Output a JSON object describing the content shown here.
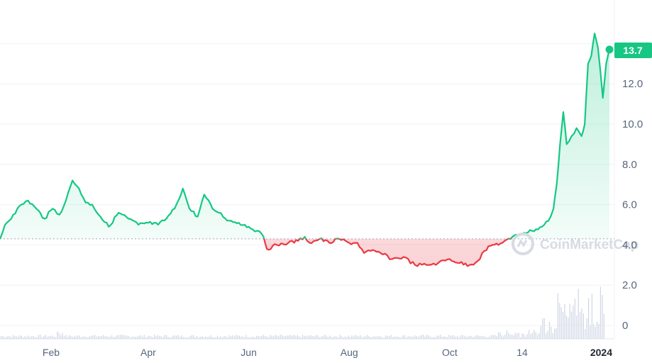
{
  "chart_data": {
    "type": "line",
    "x_start": "2023-01-01",
    "x_end": "2024-01-09",
    "ylim": [
      -0.5,
      16
    ],
    "yticks": [
      0,
      2.0,
      4.0,
      6.0,
      8.0,
      10.0,
      12.0
    ],
    "ytick_labels": [
      "0",
      "2.0",
      "4.0",
      "6.0",
      "8.0",
      "10.0",
      "12.0"
    ],
    "xtick_labels": [
      {
        "date": "2023-02-01",
        "label": "Feb",
        "bold": false
      },
      {
        "date": "2023-04-01",
        "label": "Apr",
        "bold": false
      },
      {
        "date": "2023-06-01",
        "label": "Jun",
        "bold": false
      },
      {
        "date": "2023-08-01",
        "label": "Aug",
        "bold": false
      },
      {
        "date": "2023-10-01",
        "label": "Oct",
        "bold": false
      },
      {
        "date": "2023-11-14",
        "label": "14",
        "bold": false
      },
      {
        "date": "2024-01-01",
        "label": "2024",
        "bold": true
      }
    ],
    "baseline": 4.3,
    "current_price_label": "13.7",
    "current_price": 13.7,
    "grid": true,
    "legend": "none",
    "colors": {
      "up": "#16c784",
      "down": "#ea3943",
      "baseline": "#a1a7bb",
      "volume": "#cfd6e4"
    },
    "series": [
      {
        "type": "line",
        "points": [
          [
            "2023-01-01",
            4.3
          ],
          [
            "2023-01-04",
            5.0
          ],
          [
            "2023-01-09",
            5.5
          ],
          [
            "2023-01-14",
            6.0
          ],
          [
            "2023-01-18",
            6.2
          ],
          [
            "2023-01-23",
            5.8
          ],
          [
            "2023-01-28",
            5.3
          ],
          [
            "2023-02-02",
            5.8
          ],
          [
            "2023-02-06",
            5.5
          ],
          [
            "2023-02-10",
            6.2
          ],
          [
            "2023-02-14",
            7.2
          ],
          [
            "2023-02-18",
            6.8
          ],
          [
            "2023-02-22",
            6.1
          ],
          [
            "2023-02-26",
            6.0
          ],
          [
            "2023-03-03",
            5.4
          ],
          [
            "2023-03-08",
            4.9
          ],
          [
            "2023-03-14",
            5.6
          ],
          [
            "2023-03-20",
            5.3
          ],
          [
            "2023-03-26",
            5.0
          ],
          [
            "2023-04-01",
            5.1
          ],
          [
            "2023-04-07",
            5.0
          ],
          [
            "2023-04-12",
            5.3
          ],
          [
            "2023-04-17",
            5.8
          ],
          [
            "2023-04-22",
            6.8
          ],
          [
            "2023-04-26",
            5.8
          ],
          [
            "2023-05-01",
            5.4
          ],
          [
            "2023-05-05",
            6.5
          ],
          [
            "2023-05-10",
            5.8
          ],
          [
            "2023-05-14",
            5.6
          ],
          [
            "2023-05-20",
            5.2
          ],
          [
            "2023-05-26",
            5.1
          ],
          [
            "2023-06-01",
            4.9
          ],
          [
            "2023-06-06",
            4.7
          ],
          [
            "2023-06-10",
            4.4
          ],
          [
            "2023-06-12",
            3.8
          ],
          [
            "2023-06-18",
            4.0
          ],
          [
            "2023-06-25",
            4.1
          ],
          [
            "2023-07-01",
            4.2
          ],
          [
            "2023-07-05",
            4.4
          ],
          [
            "2023-07-08",
            4.1
          ],
          [
            "2023-07-14",
            4.3
          ],
          [
            "2023-07-20",
            4.1
          ],
          [
            "2023-07-26",
            4.3
          ],
          [
            "2023-08-01",
            4.1
          ],
          [
            "2023-08-06",
            4.1
          ],
          [
            "2023-08-10",
            3.6
          ],
          [
            "2023-08-14",
            3.7
          ],
          [
            "2023-08-20",
            3.6
          ],
          [
            "2023-08-27",
            3.3
          ],
          [
            "2023-09-03",
            3.4
          ],
          [
            "2023-09-10",
            3.0
          ],
          [
            "2023-09-17",
            3.0
          ],
          [
            "2023-09-24",
            3.1
          ],
          [
            "2023-10-01",
            3.3
          ],
          [
            "2023-10-07",
            3.1
          ],
          [
            "2023-10-13",
            3.0
          ],
          [
            "2023-10-18",
            3.2
          ],
          [
            "2023-10-22",
            3.7
          ],
          [
            "2023-10-27",
            4.0
          ],
          [
            "2023-11-02",
            4.1
          ],
          [
            "2023-11-07",
            4.3
          ],
          [
            "2023-11-10",
            4.5
          ],
          [
            "2023-11-15",
            4.6
          ],
          [
            "2023-11-20",
            4.7
          ],
          [
            "2023-11-26",
            4.9
          ],
          [
            "2023-11-30",
            5.2
          ],
          [
            "2023-12-03",
            5.8
          ],
          [
            "2023-12-05",
            7.0
          ],
          [
            "2023-12-07",
            9.0
          ],
          [
            "2023-12-09",
            10.6
          ],
          [
            "2023-12-11",
            9.0
          ],
          [
            "2023-12-14",
            9.4
          ],
          [
            "2023-12-17",
            9.8
          ],
          [
            "2023-12-20",
            9.4
          ],
          [
            "2023-12-22",
            10.0
          ],
          [
            "2023-12-24",
            13.0
          ],
          [
            "2023-12-26",
            13.4
          ],
          [
            "2023-12-28",
            14.5
          ],
          [
            "2023-12-30",
            13.8
          ],
          [
            "2024-01-02",
            11.3
          ],
          [
            "2024-01-04",
            13.0
          ],
          [
            "2024-01-06",
            13.7
          ]
        ]
      }
    ]
  },
  "watermark": {
    "text": "CoinMarketCap"
  }
}
